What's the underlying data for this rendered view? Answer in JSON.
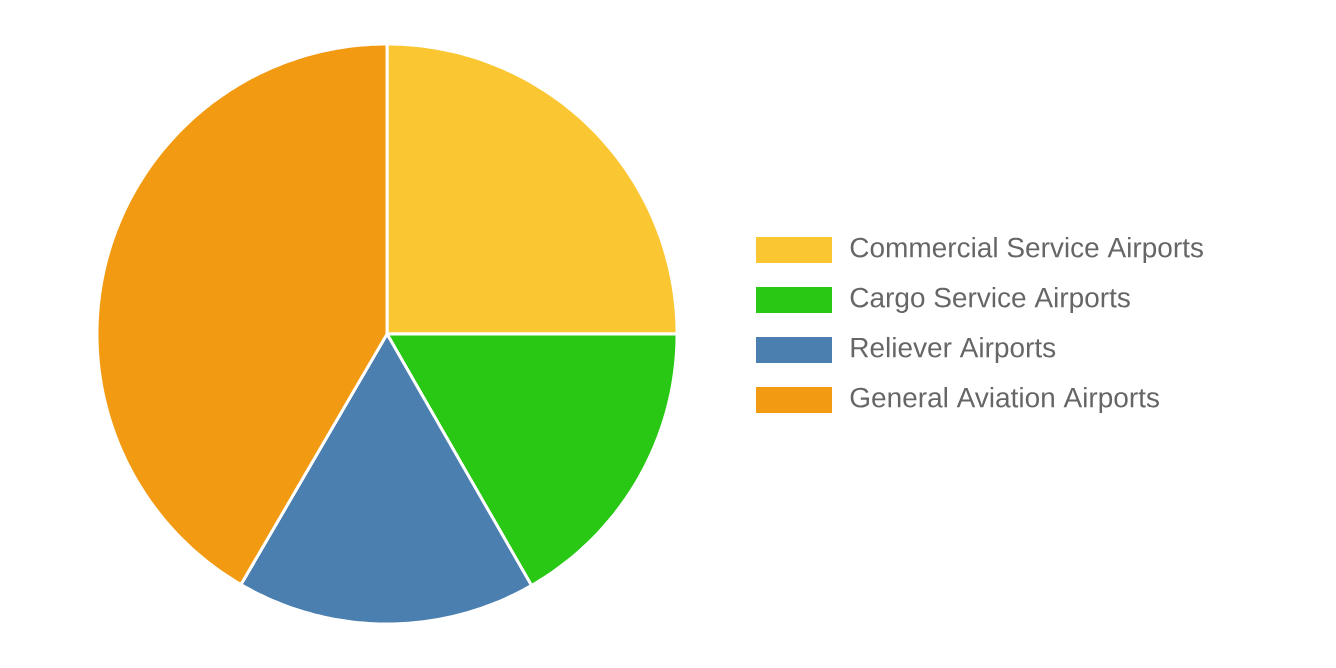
{
  "chart_data": {
    "type": "pie",
    "categories": [
      "Commercial Service Airports",
      "Cargo Service Airports",
      "Reliever Airports",
      "General Aviation Airports"
    ],
    "values": [
      25,
      16.7,
      16.7,
      41.6
    ],
    "colors": [
      "#fac632",
      "#28c814",
      "#4a7fb0",
      "#f29b12"
    ],
    "legend": "right"
  }
}
